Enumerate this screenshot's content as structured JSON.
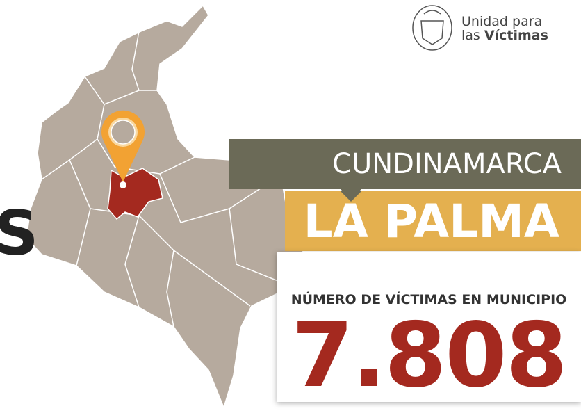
{
  "logo": {
    "line1": "Unidad para",
    "line2_prefix": "las",
    "line2_bold": "Víctimas"
  },
  "cropped_text": "S",
  "department": "CUNDINAMARCA",
  "municipality": "LA PALMA",
  "stat": {
    "label": "NÚMERO DE VÍCTIMAS EN MUNICIPIO",
    "value": "7.808"
  }
}
